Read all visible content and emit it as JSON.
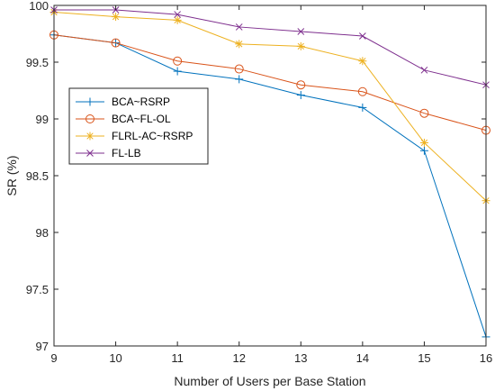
{
  "chart_data": {
    "type": "line",
    "title": "",
    "xlabel": "Number of Users per Base Station",
    "ylabel": "SR (%)",
    "x": [
      9,
      10,
      11,
      12,
      13,
      14,
      15,
      16
    ],
    "xlim": [
      9,
      16
    ],
    "ylim": [
      97,
      100
    ],
    "xticks": [
      "9",
      "10",
      "11",
      "12",
      "13",
      "14",
      "15",
      "16"
    ],
    "yticks": [
      "97",
      "97.5",
      "98",
      "98.5",
      "99",
      "99.5",
      "100"
    ],
    "grid": false,
    "legend_position": "left",
    "series": [
      {
        "name": "BCA~RSRP",
        "color": "#0072BD",
        "marker": "plus",
        "values": [
          99.74,
          99.67,
          99.42,
          99.35,
          99.21,
          99.1,
          98.72,
          97.08
        ]
      },
      {
        "name": "BCA~FL-OL",
        "color": "#D95319",
        "marker": "circle",
        "values": [
          99.74,
          99.67,
          99.51,
          99.44,
          99.3,
          99.24,
          99.05,
          98.9
        ]
      },
      {
        "name": "FLRL-AC~RSRP",
        "color": "#EDB120",
        "marker": "asterisk",
        "values": [
          99.94,
          99.9,
          99.87,
          99.66,
          99.64,
          99.51,
          98.79,
          98.28
        ]
      },
      {
        "name": "FL-LB",
        "color": "#7E2F8E",
        "marker": "cross",
        "values": [
          99.96,
          99.96,
          99.92,
          99.81,
          99.77,
          99.73,
          99.43,
          99.3
        ]
      }
    ]
  }
}
